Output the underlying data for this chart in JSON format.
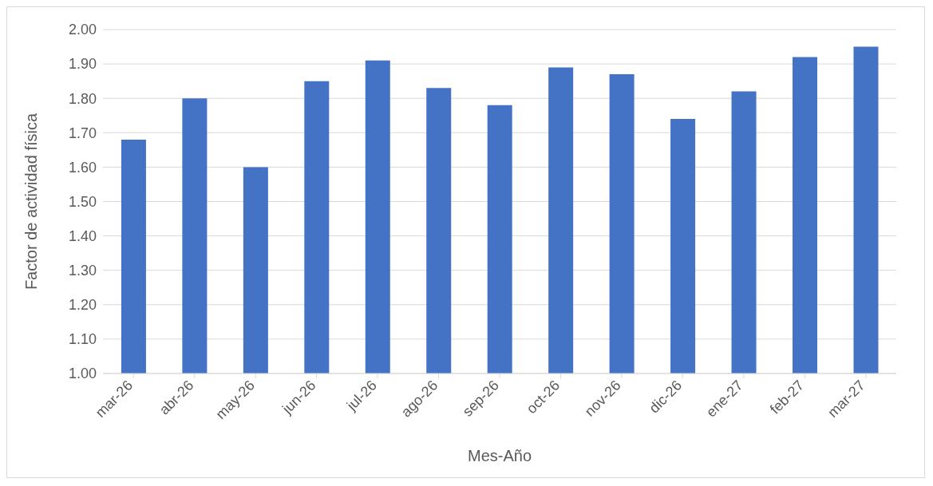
{
  "chart_data": {
    "type": "bar",
    "xlabel": "Mes-Año",
    "ylabel": "Factor de actividad física",
    "categories": [
      "mar-26",
      "abr-26",
      "may-26",
      "jun-26",
      "jul-26",
      "ago-26",
      "sep-26",
      "oct-26",
      "nov-26",
      "dic-26",
      "ene-27",
      "feb-27",
      "mar-27"
    ],
    "values": [
      1.68,
      1.8,
      1.6,
      1.85,
      1.91,
      1.83,
      1.78,
      1.89,
      1.87,
      1.74,
      1.82,
      1.92,
      1.95
    ],
    "color": "#4472c4",
    "ylim": [
      1,
      2
    ],
    "yticks": [
      {
        "value": 1,
        "label": "1.00"
      },
      {
        "value": 1.1,
        "label": "1.10"
      },
      {
        "value": 1.2,
        "label": "1.20"
      },
      {
        "value": 1.3,
        "label": "1.30"
      },
      {
        "value": 1.4,
        "label": "1.40"
      },
      {
        "value": 1.5,
        "label": "1.50"
      },
      {
        "value": 1.6,
        "label": "1.60"
      },
      {
        "value": 1.7,
        "label": "1.70"
      },
      {
        "value": 1.8,
        "label": "1.80"
      },
      {
        "value": 1.9,
        "label": "1.90"
      },
      {
        "value": 2,
        "label": "2.00"
      }
    ],
    "grid": "y"
  }
}
